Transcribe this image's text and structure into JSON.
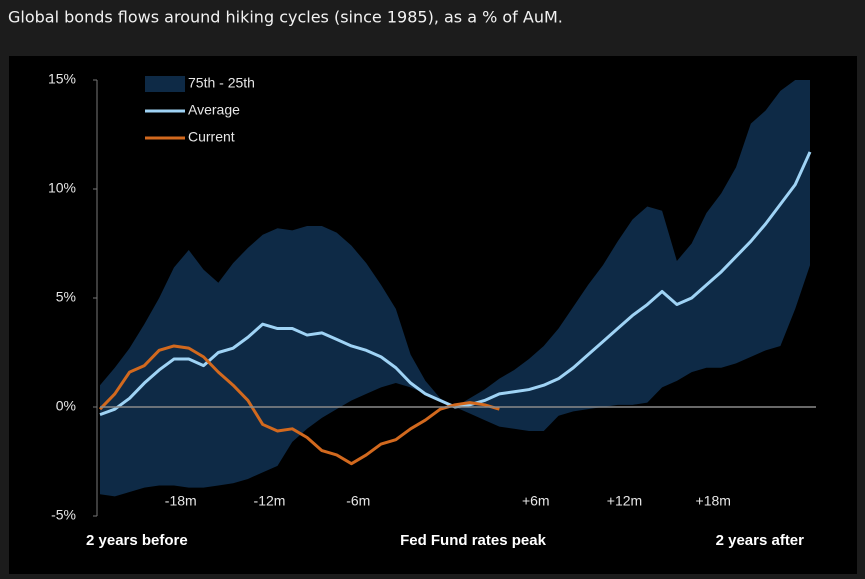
{
  "chart_data": {
    "type": "line",
    "title": "Global bonds flows around hiking cycles (since 1985), as a % of AuM.",
    "x": [
      -24,
      -23,
      -22,
      -21,
      -20,
      -19,
      -18,
      -17,
      -16,
      -15,
      -14,
      -13,
      -12,
      -11,
      -10,
      -9,
      -8,
      -7,
      -6,
      -5,
      -4,
      -3,
      -2,
      -1,
      0,
      1,
      2,
      3,
      4,
      5,
      6,
      7,
      8,
      9,
      10,
      11,
      12,
      13,
      14,
      15,
      16,
      17,
      18,
      19,
      20,
      21,
      22,
      23,
      24
    ],
    "xlim": [
      -24,
      24
    ],
    "xticks": [
      {
        "value": -18,
        "label": "-18m"
      },
      {
        "value": -12,
        "label": "-12m"
      },
      {
        "value": -6,
        "label": "-6m"
      },
      {
        "value": 6,
        "label": "+6m"
      },
      {
        "value": 12,
        "label": "+12m"
      },
      {
        "value": 18,
        "label": "+18m"
      }
    ],
    "xlabels": [
      {
        "value": -24,
        "label": "2 years before"
      },
      {
        "value": 0,
        "label": "Fed Fund rates peak"
      },
      {
        "value": 24,
        "label": "2 years after"
      }
    ],
    "ylim": [
      -5,
      15
    ],
    "yticks": [
      {
        "value": -5,
        "label": "-5%"
      },
      {
        "value": 0,
        "label": "0%"
      },
      {
        "value": 5,
        "label": "5%"
      },
      {
        "value": 10,
        "label": "10%"
      },
      {
        "value": 15,
        "label": "15%"
      }
    ],
    "zero_line": true,
    "series": [
      {
        "name": "75th - 25th",
        "color": "#0e2a46",
        "type": "band",
        "upper": [
          1.0,
          1.8,
          2.7,
          3.8,
          5.0,
          6.4,
          7.2,
          6.3,
          5.7,
          6.6,
          7.3,
          7.9,
          8.2,
          8.1,
          8.3,
          8.3,
          8.0,
          7.4,
          6.6,
          5.6,
          4.5,
          2.4,
          1.2,
          0.4,
          0.0,
          0.4,
          0.8,
          1.3,
          1.7,
          2.2,
          2.8,
          3.6,
          4.6,
          5.6,
          6.5,
          7.6,
          8.6,
          9.2,
          9.0,
          6.7,
          7.5,
          8.9,
          9.8,
          11.0,
          13.0,
          13.6,
          14.5,
          15.0,
          15.0
        ],
        "lower": [
          -4.0,
          -4.1,
          -3.9,
          -3.7,
          -3.6,
          -3.6,
          -3.7,
          -3.7,
          -3.6,
          -3.5,
          -3.3,
          -3.0,
          -2.7,
          -1.6,
          -1.0,
          -0.5,
          -0.1,
          0.3,
          0.6,
          0.9,
          1.1,
          0.9,
          0.6,
          0.3,
          0.0,
          -0.3,
          -0.6,
          -0.9,
          -1.0,
          -1.1,
          -1.1,
          -0.4,
          -0.2,
          -0.1,
          0.0,
          0.1,
          0.1,
          0.2,
          0.9,
          1.2,
          1.6,
          1.8,
          1.8,
          2.0,
          2.3,
          2.6,
          2.8,
          4.5,
          6.5
        ]
      },
      {
        "name": "Average",
        "color": "#9fd3f5",
        "type": "line",
        "values": [
          -0.35,
          -0.1,
          0.4,
          1.1,
          1.7,
          2.2,
          2.2,
          1.9,
          2.5,
          2.7,
          3.2,
          3.8,
          3.6,
          3.6,
          3.3,
          3.4,
          3.1,
          2.8,
          2.6,
          2.3,
          1.8,
          1.1,
          0.6,
          0.3,
          0.0,
          0.1,
          0.3,
          0.6,
          0.7,
          0.8,
          1.0,
          1.3,
          1.8,
          2.4,
          3.0,
          3.6,
          4.2,
          4.7,
          5.3,
          4.7,
          5.0,
          5.6,
          6.2,
          6.9,
          7.6,
          8.4,
          9.3,
          10.2,
          11.7
        ]
      },
      {
        "name": "Current",
        "color": "#d2691e",
        "type": "line",
        "values": [
          -0.1,
          0.6,
          1.6,
          1.9,
          2.6,
          2.8,
          2.7,
          2.3,
          1.6,
          1.0,
          0.3,
          -0.8,
          -1.1,
          -1.0,
          -1.4,
          -2.0,
          -2.2,
          -2.6,
          -2.2,
          -1.7,
          -1.5,
          -1.0,
          -0.6,
          -0.1,
          0.1,
          0.2,
          0.1,
          -0.1,
          null,
          null,
          null,
          null,
          null,
          null,
          null,
          null,
          null,
          null,
          null,
          null,
          null,
          null,
          null,
          null,
          null,
          null,
          null,
          null,
          null
        ]
      }
    ]
  }
}
